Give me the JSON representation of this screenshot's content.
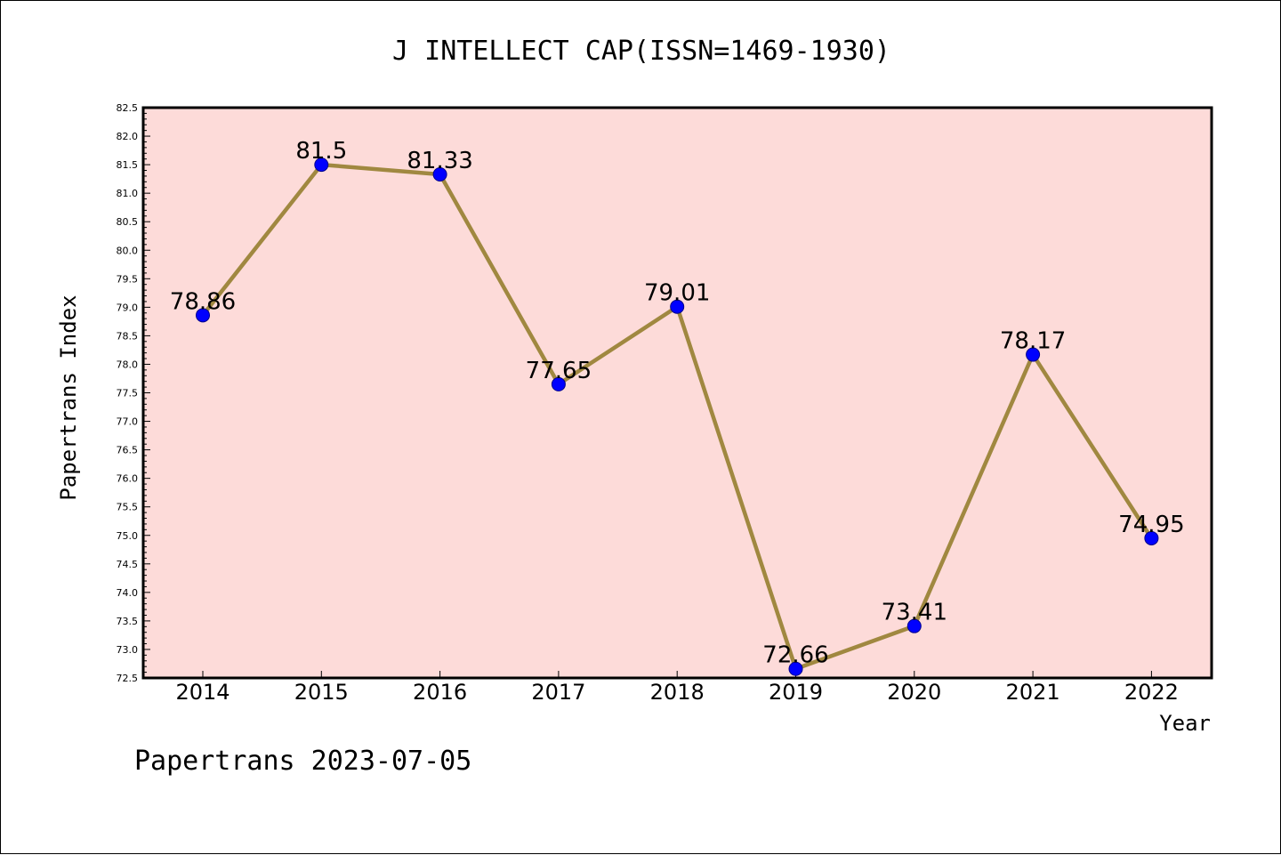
{
  "chart_data": {
    "type": "line",
    "title": "J INTELLECT CAP(ISSN=1469-1930)",
    "xlabel": "Year",
    "ylabel": "Papertrans Index",
    "categories": [
      "2014",
      "2015",
      "2016",
      "2017",
      "2018",
      "2019",
      "2020",
      "2021",
      "2022"
    ],
    "values": [
      78.86,
      81.5,
      81.33,
      77.65,
      79.01,
      72.66,
      73.41,
      78.17,
      74.95
    ],
    "data_labels": [
      "78.86",
      "81.5",
      "81.33",
      "77.65",
      "79.01",
      "72.66",
      "73.41",
      "78.17",
      "74.95"
    ],
    "ylim": [
      72.5,
      82.5
    ],
    "yticks": [
      "72.5",
      "73.0",
      "73.5",
      "74.0",
      "74.5",
      "75.0",
      "75.5",
      "76.0",
      "76.5",
      "77.0",
      "77.5",
      "78.0",
      "78.5",
      "79.0",
      "79.5",
      "80.0",
      "80.5",
      "81.0",
      "81.5",
      "82.0",
      "82.5"
    ],
    "grid": false,
    "legend": "none",
    "colors": {
      "plot_background": "#fddbd9",
      "line": "#a08840",
      "marker": "#0000ff",
      "marker_edge": "#00008b",
      "axes": "#000000"
    }
  },
  "footer": {
    "text": "Papertrans 2023-07-05"
  }
}
